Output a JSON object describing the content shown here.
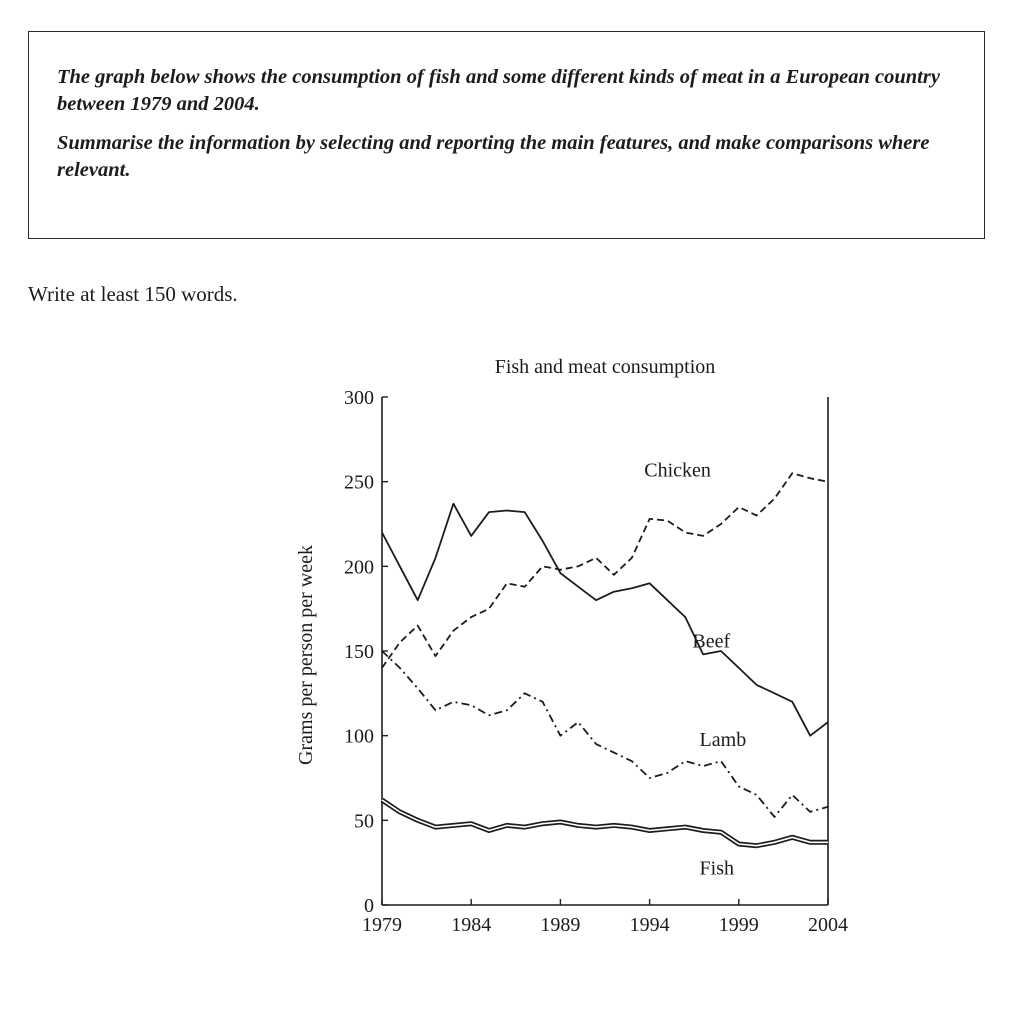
{
  "task": {
    "line1": "The graph below shows the consumption of fish and some different kinds of meat in a European country between 1979 and 2004.",
    "line2": "Summarise the information by selecting and reporting the main features, and make comparisons where relevant."
  },
  "instruction": "Write at least 150 words.",
  "chart_data": {
    "type": "line",
    "title": "Fish and meat consumption",
    "xlabel": "",
    "ylabel": "Grams per person per week",
    "xlim": [
      1979,
      2004
    ],
    "ylim": [
      0,
      300
    ],
    "x_ticks": [
      "1979",
      "1984",
      "1989",
      "1994",
      "1999",
      "2004"
    ],
    "y_ticks": [
      "0",
      "50",
      "100",
      "150",
      "200",
      "250",
      "300"
    ],
    "grid": false,
    "x": [
      1979,
      1980,
      1981,
      1982,
      1983,
      1984,
      1985,
      1986,
      1987,
      1988,
      1989,
      1990,
      1991,
      1992,
      1993,
      1994,
      1995,
      1996,
      1997,
      1998,
      1999,
      2000,
      2001,
      2002,
      2003,
      2004
    ],
    "series": [
      {
        "name": "Chicken",
        "style": "dashed",
        "values": [
          140,
          155,
          165,
          147,
          162,
          170,
          175,
          190,
          188,
          200,
          198,
          200,
          205,
          195,
          205,
          228,
          227,
          220,
          218,
          225,
          235,
          230,
          240,
          255,
          252,
          250
        ]
      },
      {
        "name": "Beef",
        "style": "solid",
        "values": [
          220,
          200,
          180,
          205,
          237,
          218,
          232,
          233,
          232,
          215,
          196,
          188,
          180,
          185,
          187,
          190,
          180,
          170,
          148,
          150,
          140,
          130,
          125,
          120,
          100,
          108
        ]
      },
      {
        "name": "Lamb",
        "style": "dashdot",
        "values": [
          150,
          140,
          128,
          115,
          120,
          118,
          112,
          115,
          125,
          120,
          100,
          108,
          95,
          90,
          85,
          75,
          78,
          85,
          82,
          85,
          70,
          65,
          52,
          65,
          55,
          58
        ]
      },
      {
        "name": "Fish",
        "style": "double",
        "values": [
          62,
          55,
          50,
          46,
          47,
          48,
          44,
          47,
          46,
          48,
          49,
          47,
          46,
          47,
          46,
          44,
          45,
          46,
          44,
          43,
          36,
          35,
          37,
          40,
          37,
          37
        ]
      }
    ],
    "colors": {
      "line": "#1c1c1c"
    }
  }
}
